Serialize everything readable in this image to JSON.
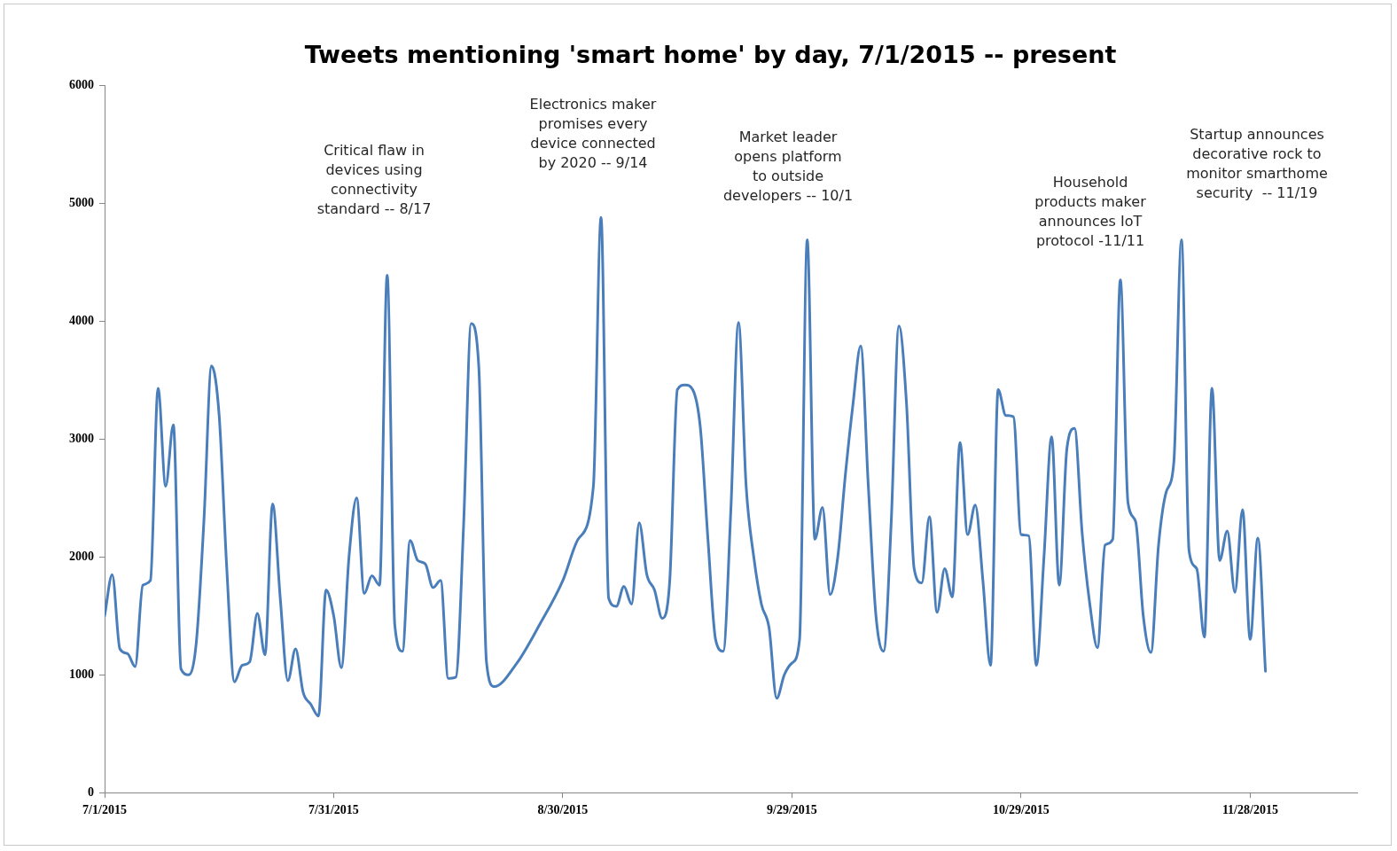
{
  "chart_data": {
    "type": "line",
    "title": "Tweets mentioning 'smart home' by day, 7/1/2015 -- present",
    "annotations": [
      "Critical flaw in\ndevices using\nconnectivity\nstandard -- 8/17",
      "Electronics maker\npromises every\ndevice connected\nby 2020 -- 9/14",
      "Market leader\nopens platform\nto outside\ndevelopers -- 10/1",
      "Household\nproducts maker\nannounces IoT\nprotocol -11/11",
      "Startup announces\ndecorative rock to\nmonitor smarthome\nsecurity  -- 11/19"
    ],
    "x": [
      "2015-07-01",
      "2015-07-02",
      "2015-07-03",
      "2015-07-04",
      "2015-07-05",
      "2015-07-06",
      "2015-07-07",
      "2015-07-08",
      "2015-07-09",
      "2015-07-10",
      "2015-07-11",
      "2015-07-12",
      "2015-07-13",
      "2015-07-14",
      "2015-07-15",
      "2015-07-16",
      "2015-07-17",
      "2015-07-18",
      "2015-07-19",
      "2015-07-20",
      "2015-07-21",
      "2015-07-22",
      "2015-07-23",
      "2015-07-24",
      "2015-07-25",
      "2015-07-26",
      "2015-07-27",
      "2015-07-28",
      "2015-07-29",
      "2015-07-30",
      "2015-07-31",
      "2015-08-01",
      "2015-08-02",
      "2015-08-03",
      "2015-08-04",
      "2015-08-05",
      "2015-08-06",
      "2015-08-07",
      "2015-08-08",
      "2015-08-09",
      "2015-08-10",
      "2015-08-11",
      "2015-08-12",
      "2015-08-13",
      "2015-08-14",
      "2015-08-15",
      "2015-08-16",
      "2015-08-17",
      "2015-08-18",
      "2015-08-19",
      "2015-08-20",
      "2015-08-21",
      "2015-08-24",
      "2015-08-27",
      "2015-08-30",
      "2015-09-01",
      "2015-09-03",
      "2015-09-04",
      "2015-09-05",
      "2015-09-06",
      "2015-09-07",
      "2015-09-08",
      "2015-09-09",
      "2015-09-10",
      "2015-09-11",
      "2015-09-12",
      "2015-09-13",
      "2015-09-14",
      "2015-09-15",
      "2015-09-16",
      "2015-09-17",
      "2015-09-18",
      "2015-09-19",
      "2015-09-20",
      "2015-09-21",
      "2015-09-22",
      "2015-09-23",
      "2015-09-24",
      "2015-09-25",
      "2015-09-26",
      "2015-09-27",
      "2015-09-28",
      "2015-09-29",
      "2015-09-30",
      "2015-10-01",
      "2015-10-02",
      "2015-10-03",
      "2015-10-04",
      "2015-10-05",
      "2015-10-06",
      "2015-10-07",
      "2015-10-08",
      "2015-10-09",
      "2015-10-10",
      "2015-10-11",
      "2015-10-12",
      "2015-10-13",
      "2015-10-14",
      "2015-10-15",
      "2015-10-16",
      "2015-10-17",
      "2015-10-18",
      "2015-10-19",
      "2015-10-20",
      "2015-10-21",
      "2015-10-22",
      "2015-10-23",
      "2015-10-24",
      "2015-10-25",
      "2015-10-26",
      "2015-10-27",
      "2015-10-28",
      "2015-10-29",
      "2015-10-30",
      "2015-10-31",
      "2015-11-01",
      "2015-11-02",
      "2015-11-03",
      "2015-11-04",
      "2015-11-05",
      "2015-11-06",
      "2015-11-07",
      "2015-11-08",
      "2015-11-09",
      "2015-11-10",
      "2015-11-11",
      "2015-11-12",
      "2015-11-13",
      "2015-11-14",
      "2015-11-15",
      "2015-11-16",
      "2015-11-17",
      "2015-11-18",
      "2015-11-19",
      "2015-11-20",
      "2015-11-21",
      "2015-11-22",
      "2015-11-23",
      "2015-11-24",
      "2015-11-25",
      "2015-11-26",
      "2015-11-27",
      "2015-11-28",
      "2015-11-29",
      "2015-11-30"
    ],
    "series": [
      {
        "color": "#4a7ebb",
        "values": [
          1500,
          1850,
          1220,
          1180,
          1070,
          1760,
          1800,
          3430,
          2600,
          3120,
          1050,
          1000,
          1270,
          2300,
          3620,
          3200,
          1900,
          940,
          1080,
          1110,
          1520,
          1170,
          2450,
          1650,
          950,
          1220,
          850,
          750,
          650,
          1720,
          1500,
          1060,
          2000,
          2500,
          1690,
          1840,
          1760,
          4390,
          1420,
          1200,
          2140,
          1970,
          1940,
          1740,
          1800,
          970,
          980,
          2260,
          3980,
          3610,
          1110,
          900,
          1100,
          1430,
          1800,
          2150,
          2600,
          4880,
          1650,
          1580,
          1750,
          1600,
          2290,
          1850,
          1720,
          1480,
          1800,
          3420,
          3460,
          3420,
          3100,
          2150,
          1300,
          1200,
          2400,
          3990,
          2600,
          2000,
          1600,
          1400,
          800,
          1000,
          1100,
          1300,
          4690,
          2150,
          2420,
          1680,
          2000,
          2700,
          3300,
          3790,
          2600,
          1500,
          1200,
          2300,
          3960,
          3300,
          1900,
          1780,
          2340,
          1530,
          1900,
          1660,
          2970,
          2190,
          2440,
          1800,
          1080,
          3420,
          3200,
          3190,
          2190,
          2180,
          1080,
          2000,
          3020,
          1760,
          2920,
          3090,
          2200,
          1600,
          1230,
          2100,
          2150,
          4350,
          2460,
          2300,
          1500,
          1190,
          2100,
          2550,
          2800,
          4690,
          2050,
          1900,
          1320,
          3430,
          1970,
          2220,
          1700,
          2400,
          1300,
          2160,
          1030
        ]
      }
    ],
    "xlim": [
      "2015-07-01",
      "2015-12-12"
    ],
    "xticks": [
      {
        "value": "2015-07-01",
        "label": "7/1/2015"
      },
      {
        "value": "2015-07-31",
        "label": "7/31/2015"
      },
      {
        "value": "2015-08-30",
        "label": "8/30/2015"
      },
      {
        "value": "2015-09-29",
        "label": "9/29/2015"
      },
      {
        "value": "2015-10-29",
        "label": "10/29/2015"
      },
      {
        "value": "2015-11-28",
        "label": "11/28/2015"
      }
    ],
    "ylim": [
      0,
      6000
    ],
    "yticks": [
      0,
      1000,
      2000,
      3000,
      4000,
      5000,
      6000
    ],
    "marker": "none",
    "line_style": "solid"
  }
}
